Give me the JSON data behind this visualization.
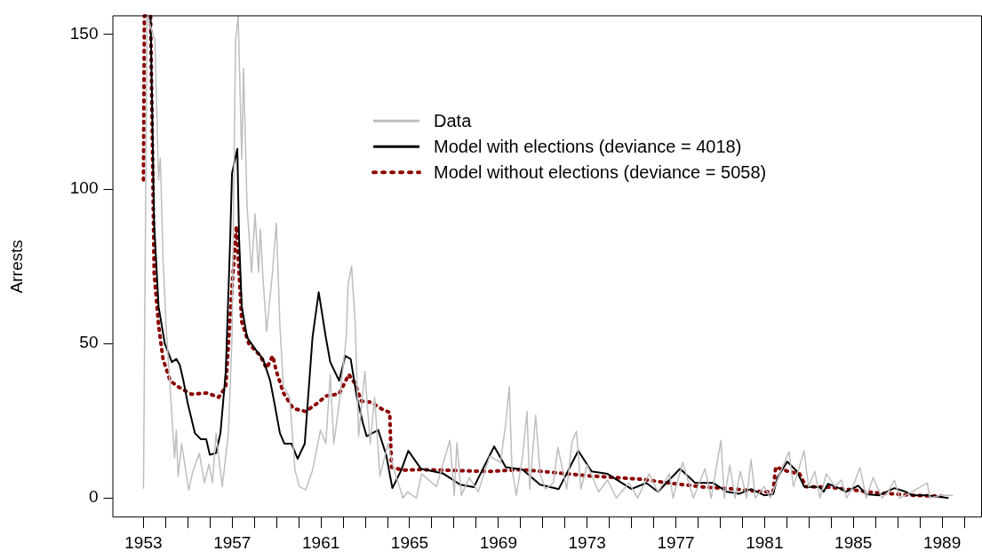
{
  "chart_data": {
    "type": "line",
    "ylabel": "Arrests",
    "xlim": [
      1951.6,
      1990.8
    ],
    "ylim": [
      -6.3,
      156.2
    ],
    "xticks": [
      1953,
      {
        "value": 1954,
        "label": null
      },
      {
        "value": 1955,
        "label": null
      },
      {
        "value": 1956,
        "label": null
      },
      1957,
      {
        "value": 1958,
        "label": null
      },
      {
        "value": 1959,
        "label": null
      },
      {
        "value": 1960,
        "label": null
      },
      1961,
      {
        "value": 1962,
        "label": null
      },
      {
        "value": 1963,
        "label": null
      },
      {
        "value": 1964,
        "label": null
      },
      1965,
      {
        "value": 1966,
        "label": null
      },
      {
        "value": 1967,
        "label": null
      },
      {
        "value": 1968,
        "label": null
      },
      1969,
      {
        "value": 1970,
        "label": null
      },
      {
        "value": 1971,
        "label": null
      },
      {
        "value": 1972,
        "label": null
      },
      1973,
      {
        "value": 1974,
        "label": null
      },
      {
        "value": 1975,
        "label": null
      },
      {
        "value": 1976,
        "label": null
      },
      1977,
      {
        "value": 1978,
        "label": null
      },
      {
        "value": 1979,
        "label": null
      },
      {
        "value": 1980,
        "label": null
      },
      1981,
      {
        "value": 1982,
        "label": null
      },
      {
        "value": 1983,
        "label": null
      },
      {
        "value": 1984,
        "label": null
      },
      1985,
      {
        "value": 1986,
        "label": null
      },
      {
        "value": 1987,
        "label": null
      },
      {
        "value": 1988,
        "label": null
      },
      1989,
      {
        "value": 1990,
        "label": null
      }
    ],
    "yticks": [
      0,
      50,
      100,
      150
    ],
    "grid": false,
    "legend": "top",
    "marker": "none",
    "series": [
      {
        "name": "Data",
        "color": "#bebebe",
        "line_style": "solid",
        "x": [
          1953.0,
          1953.16,
          1953.52,
          1953.68,
          1953.76,
          1953.88,
          1954.04,
          1954.28,
          1954.4,
          1954.48,
          1954.56,
          1954.72,
          1955.04,
          1955.24,
          1955.52,
          1955.75,
          1955.95,
          1956.11,
          1956.27,
          1956.55,
          1956.83,
          1956.99,
          1957.15,
          1957.27,
          1957.43,
          1957.51,
          1957.67,
          1957.87,
          1958.03,
          1958.19,
          1958.27,
          1958.39,
          1958.55,
          1958.79,
          1958.99,
          1959.15,
          1959.31,
          1959.59,
          1959.83,
          1960.03,
          1960.31,
          1960.62,
          1960.98,
          1961.22,
          1961.42,
          1961.58,
          1961.82,
          1962.14,
          1962.22,
          1962.38,
          1962.54,
          1962.7,
          1962.98,
          1963.22,
          1963.42,
          1963.66,
          1964.02,
          1964.3,
          1964.7,
          1964.9,
          1965.3,
          1965.54,
          1966.21,
          1966.81,
          1967.01,
          1967.13,
          1967.33,
          1967.69,
          1968.09,
          1968.61,
          1969.09,
          1969.33,
          1969.49,
          1969.61,
          1969.81,
          1970.09,
          1970.29,
          1970.41,
          1970.68,
          1970.88,
          1971.12,
          1971.48,
          1971.68,
          1972.08,
          1972.32,
          1972.52,
          1972.72,
          1973.0,
          1973.52,
          1973.92,
          1974.32,
          1974.88,
          1975.28,
          1975.79,
          1976.19,
          1976.71,
          1976.87,
          1977.31,
          1977.39,
          1977.79,
          1978.31,
          1978.59,
          1979.03,
          1979.19,
          1979.43,
          1979.67,
          1979.91,
          1980.19,
          1980.39,
          1980.58,
          1980.98,
          1981.26,
          1981.78,
          1982.1,
          1982.3,
          1982.78,
          1982.98,
          1983.26,
          1983.5,
          1983.78,
          1984.18,
          1984.46,
          1984.7,
          1984.98,
          1985.3,
          1985.58,
          1985.89,
          1986.29,
          1986.57,
          1986.85,
          1987.09,
          1987.65,
          1988.33,
          1988.45,
          1988.97,
          1989.49
        ],
        "values": [
          3,
          156,
          148,
          103,
          110,
          77.5,
          53,
          27,
          13,
          22,
          7,
          17.6,
          2.6,
          9,
          14.4,
          4.9,
          11,
          5,
          21,
          3.7,
          21,
          52,
          148,
          156,
          109.5,
          139,
          94.5,
          73,
          92,
          73,
          87,
          71,
          54,
          71,
          89,
          56,
          36,
          32.6,
          9,
          3.7,
          2.6,
          9,
          22,
          17.6,
          40,
          17.6,
          30.5,
          52,
          69,
          75,
          57,
          20,
          41,
          17.6,
          32.6,
          7,
          17.6,
          9,
          0,
          2,
          0,
          7.8,
          3.7,
          18.7,
          0.9,
          17.9,
          0.9,
          6.6,
          2,
          13.5,
          11.5,
          24,
          36,
          9.5,
          0.9,
          13.5,
          28,
          2.9,
          26.8,
          7.8,
          2.9,
          4.9,
          16.4,
          2.9,
          18.2,
          21.6,
          2.9,
          10.7,
          2,
          5.8,
          0,
          4.9,
          0,
          7.8,
          2,
          7.8,
          0,
          11.5,
          9.5,
          0,
          9.5,
          0,
          18.7,
          0,
          10.7,
          0,
          8.6,
          0,
          12.4,
          0,
          3.7,
          0,
          9.5,
          15,
          3.7,
          15.3,
          3.7,
          8.6,
          0,
          7.8,
          3.7,
          5.8,
          0,
          3.7,
          9.8,
          0,
          6.6,
          0,
          2,
          5.8,
          0,
          2,
          4.9,
          0,
          0.9,
          0.9
        ]
      },
      {
        "name": "Model with elections (deviance = 4018)",
        "color": "#000000",
        "line_style": "solid",
        "x": [
          1953.32,
          1953.48,
          1953.68,
          1953.96,
          1954.28,
          1954.48,
          1954.64,
          1954.8,
          1955.0,
          1955.32,
          1955.59,
          1955.83,
          1955.99,
          1956.27,
          1956.47,
          1956.71,
          1956.91,
          1956.99,
          1957.23,
          1957.31,
          1957.43,
          1957.67,
          1958.11,
          1958.39,
          1958.71,
          1958.91,
          1959.15,
          1959.35,
          1959.67,
          1959.95,
          1960.27,
          1960.62,
          1960.9,
          1961.22,
          1961.42,
          1961.82,
          1962.1,
          1962.34,
          1962.62,
          1962.9,
          1963.06,
          1963.58,
          1963.94,
          1964.22,
          1964.62,
          1964.94,
          1965.5,
          1966.49,
          1967.29,
          1967.89,
          1968.81,
          1969.33,
          1970.09,
          1970.88,
          1971.72,
          1972.6,
          1973.2,
          1973.92,
          1975.0,
          1975.67,
          1976.19,
          1977.19,
          1977.87,
          1978.67,
          1979.31,
          1979.87,
          1980.39,
          1980.98,
          1981.38,
          1981.58,
          1982.02,
          1982.46,
          1982.78,
          1983.5,
          1983.66,
          1983.86,
          1984.46,
          1984.66,
          1985.22,
          1985.58,
          1986.17,
          1986.85,
          1987.37,
          1987.65,
          1988.29,
          1989.29
        ],
        "values": [
          156,
          89,
          62,
          50,
          44,
          45,
          43,
          38,
          30.5,
          21,
          19,
          19,
          14,
          14.5,
          21,
          41,
          84,
          105,
          113,
          84,
          62,
          52,
          47.5,
          45,
          38,
          30.5,
          21,
          17.6,
          17.6,
          12.7,
          17.6,
          52,
          66.6,
          52,
          44,
          38,
          46,
          45,
          32.6,
          24,
          20,
          22,
          14,
          3.2,
          9,
          15.3,
          9.5,
          8,
          4.3,
          3.5,
          16.7,
          10,
          9.2,
          4.3,
          2.9,
          15.3,
          8.6,
          7.8,
          2.9,
          4.9,
          2,
          9.5,
          4.9,
          4.9,
          2,
          1.4,
          2.9,
          0.9,
          1.2,
          6.6,
          11.8,
          8.6,
          3.7,
          3.5,
          2,
          4.6,
          2.9,
          2,
          4,
          1.2,
          0.9,
          3.2,
          2,
          0.9,
          0.9,
          0
        ]
      },
      {
        "name": "Model without elections (deviance = 5058)",
        "color": "#8b0000",
        "line_style": "dotted",
        "x": [
          1953.0,
          1953.04,
          1953.32,
          1953.44,
          1953.48,
          1953.68,
          1953.88,
          1954.2,
          1954.56,
          1955.16,
          1955.87,
          1956.39,
          1956.71,
          1956.99,
          1957.19,
          1957.31,
          1957.43,
          1957.75,
          1958.27,
          1958.55,
          1958.83,
          1958.99,
          1959.31,
          1959.75,
          1960.31,
          1960.9,
          1961.22,
          1961.82,
          1962.26,
          1962.54,
          1962.82,
          1963.26,
          1963.74,
          1964.1,
          1964.18,
          1964.7,
          1965.5,
          1968.61,
          1970.01,
          1971.0,
          1973.0,
          1975.4,
          1976.99,
          1978.31,
          1979.67,
          1980.98,
          1981.38,
          1981.5,
          1982.06,
          1982.58,
          1982.86,
          1983.9,
          1984.98,
          1986.05,
          1987.65,
          1988.97
        ],
        "values": [
          103,
          156,
          156,
          94.5,
          73,
          56,
          45,
          38,
          36,
          33.6,
          34,
          32.6,
          36,
          68,
          88,
          73,
          57,
          50,
          46,
          42,
          46,
          41,
          34,
          29,
          28,
          31,
          33,
          33.7,
          40,
          37,
          31.4,
          31,
          28.8,
          27.7,
          10,
          9,
          9.2,
          8.6,
          9.2,
          8.6,
          7.2,
          6.1,
          4.6,
          3.5,
          2.9,
          2,
          2,
          10,
          8.6,
          7.8,
          3.7,
          3.5,
          2.6,
          1.7,
          0.9,
          0.6
        ]
      }
    ]
  }
}
